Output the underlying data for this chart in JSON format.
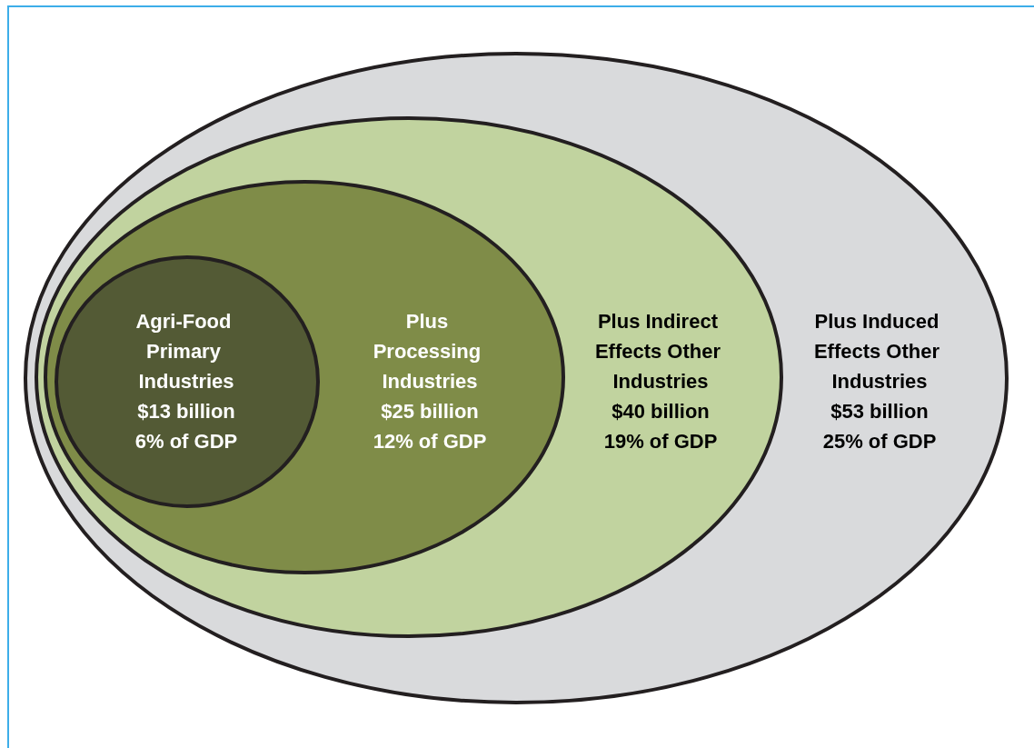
{
  "chart_data": {
    "type": "other",
    "categories": [
      "Agri-Food Primary Industries",
      "Plus Processing Industries",
      "Plus Indirect Effects Other Industries",
      "Plus Induced Effects Other Industries"
    ],
    "values": [
      13,
      25,
      40,
      53
    ],
    "value_labels": [
      "$13 billion",
      "$25 billion",
      "$40 billion",
      "$53 billion"
    ],
    "annotations": [
      "6% of GDP",
      "12% of GDP",
      "19% of GDP",
      "25% of GDP"
    ],
    "colors": [
      "#535a35",
      "#7f8c48",
      "#c1d39f",
      "#d9dadc"
    ]
  }
}
